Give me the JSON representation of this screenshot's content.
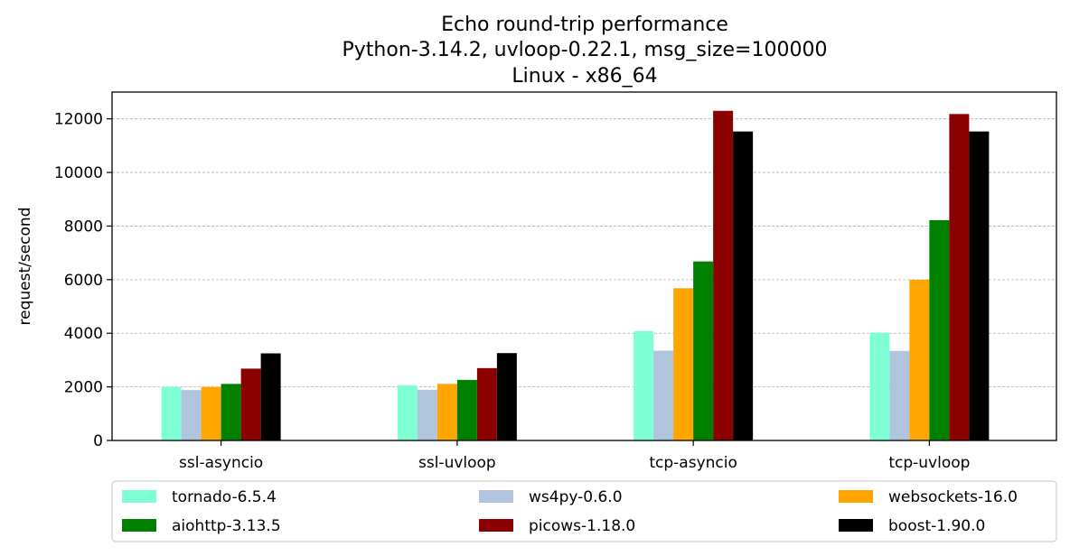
{
  "chart_data": {
    "type": "bar",
    "title": [
      "Echo round-trip performance",
      "Python-3.14.2, uvloop-0.22.1, msg_size=100000",
      "Linux - x86_64"
    ],
    "xlabel": "",
    "ylabel": "request/second",
    "categories": [
      "ssl-asyncio",
      "ssl-uvloop",
      "tcp-asyncio",
      "tcp-uvloop"
    ],
    "ylim": [
      0,
      13000
    ],
    "yticks": [
      "0",
      "2000",
      "4000",
      "6000",
      "8000",
      "10000",
      "12000"
    ],
    "grid": "y, dashed",
    "legend_position": "bottom",
    "series": [
      {
        "name": "tornado-6.5.4",
        "color": "#7fffd4",
        "values": [
          2000,
          2060,
          4080,
          4020
        ]
      },
      {
        "name": "ws4py-0.6.0",
        "color": "#b0c4de",
        "values": [
          1880,
          1890,
          3350,
          3340
        ]
      },
      {
        "name": "websockets-16.0",
        "color": "#ffa500",
        "values": [
          2000,
          2110,
          5680,
          6000
        ]
      },
      {
        "name": "aiohttp-3.13.5",
        "color": "#008000",
        "values": [
          2110,
          2260,
          6680,
          8220
        ]
      },
      {
        "name": "picows-1.18.0",
        "color": "#8b0000",
        "values": [
          2680,
          2700,
          12300,
          12180
        ]
      },
      {
        "name": "boost-1.90.0",
        "color": "#000000",
        "values": [
          3250,
          3260,
          11530,
          11530
        ]
      }
    ]
  }
}
